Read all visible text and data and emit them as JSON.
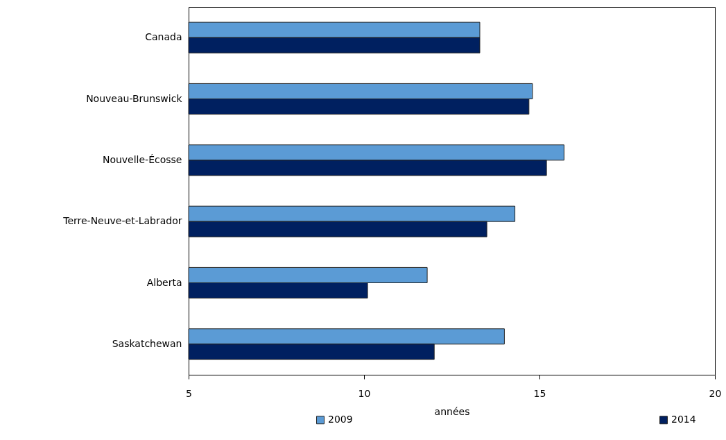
{
  "chart_data": {
    "type": "bar",
    "orientation": "horizontal",
    "categories": [
      "Canada",
      "Nouveau-Brunswick",
      "Nouvelle-Écosse",
      "Terre-Neuve-et-Labrador",
      "Alberta",
      "Saskatchewan"
    ],
    "series": [
      {
        "name": "2009",
        "color": "#5b9bd5",
        "values": [
          13.3,
          14.8,
          15.7,
          14.3,
          11.8,
          14.0
        ]
      },
      {
        "name": "2014",
        "color": "#002060",
        "values": [
          13.3,
          14.7,
          15.2,
          13.5,
          10.1,
          12.0
        ]
      }
    ],
    "xlabel": "années",
    "xlim": [
      5,
      20
    ],
    "xticks": [
      5,
      10,
      15,
      20
    ],
    "grid": false,
    "legend": "bottom"
  }
}
